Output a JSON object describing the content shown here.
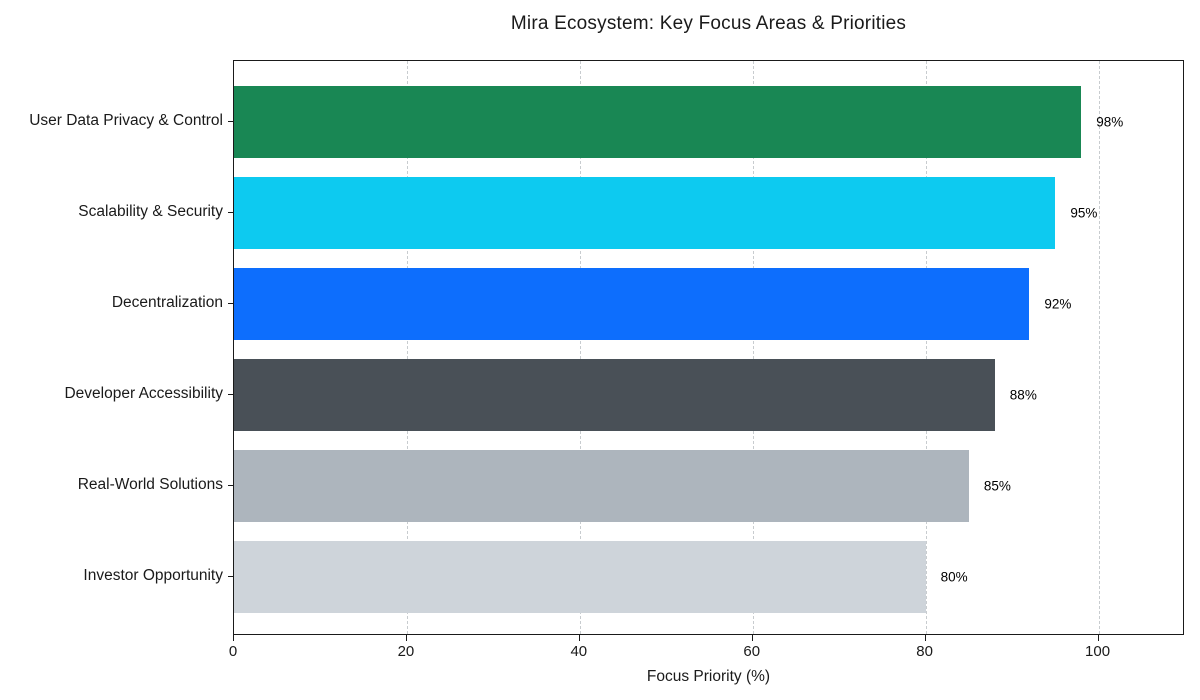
{
  "chart_data": {
    "type": "bar",
    "orientation": "horizontal",
    "title": "Mira Ecosystem: Key Focus Areas & Priorities",
    "xlabel": "Focus Priority (%)",
    "ylabel": "",
    "categories": [
      "User Data Privacy & Control",
      "Scalability & Security",
      "Decentralization",
      "Developer Accessibility",
      "Real-World Solutions",
      "Investor Opportunity"
    ],
    "values": [
      98,
      95,
      92,
      88,
      85,
      80
    ],
    "value_labels": [
      "98%",
      "95%",
      "92%",
      "88%",
      "85%",
      "80%"
    ],
    "bar_colors": [
      "#198754",
      "#0dcaf0",
      "#0d6efd",
      "#495057",
      "#adb5bd",
      "#ced4da"
    ],
    "xlim": [
      0,
      110
    ],
    "x_ticks": [
      0,
      20,
      40,
      60,
      80,
      100
    ],
    "grid": "vertical-dashed",
    "legend": "none",
    "grid_color": "#c8cccf",
    "axis_color": "#1a1a1a"
  }
}
